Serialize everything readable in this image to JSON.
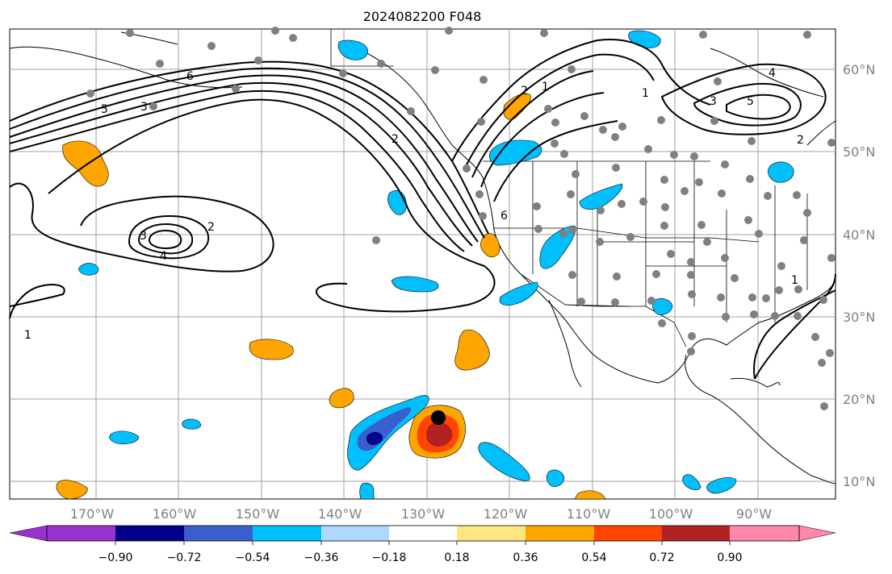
{
  "title": "2024082200 F048",
  "lon_ticks": [
    "170°W",
    "160°W",
    "150°W",
    "140°W",
    "130°W",
    "120°W",
    "110°W",
    "100°W",
    "90°W"
  ],
  "lat_ticks": [
    "60°N",
    "50°N",
    "40°N",
    "30°N",
    "20°N",
    "10°N"
  ],
  "colorbar": {
    "labels": [
      "−0.90",
      "−0.72",
      "−0.54",
      "−0.36",
      "−0.18",
      "0.18",
      "0.36",
      "0.54",
      "0.72",
      "0.90"
    ],
    "colors": [
      "#9932cc",
      "#00008b",
      "#3a5fcd",
      "#00bfff",
      "#add8ff",
      "#ffffff",
      "#ffe680",
      "#ffa500",
      "#ff4500",
      "#b22222",
      "#ff88aa"
    ]
  },
  "contour_labels": [
    "6",
    "5",
    "3",
    "4",
    "2",
    "3",
    "1",
    "2",
    "2",
    "1",
    "1",
    "3",
    "5",
    "4",
    "2",
    "1",
    "6"
  ],
  "marker": "storm-center"
}
